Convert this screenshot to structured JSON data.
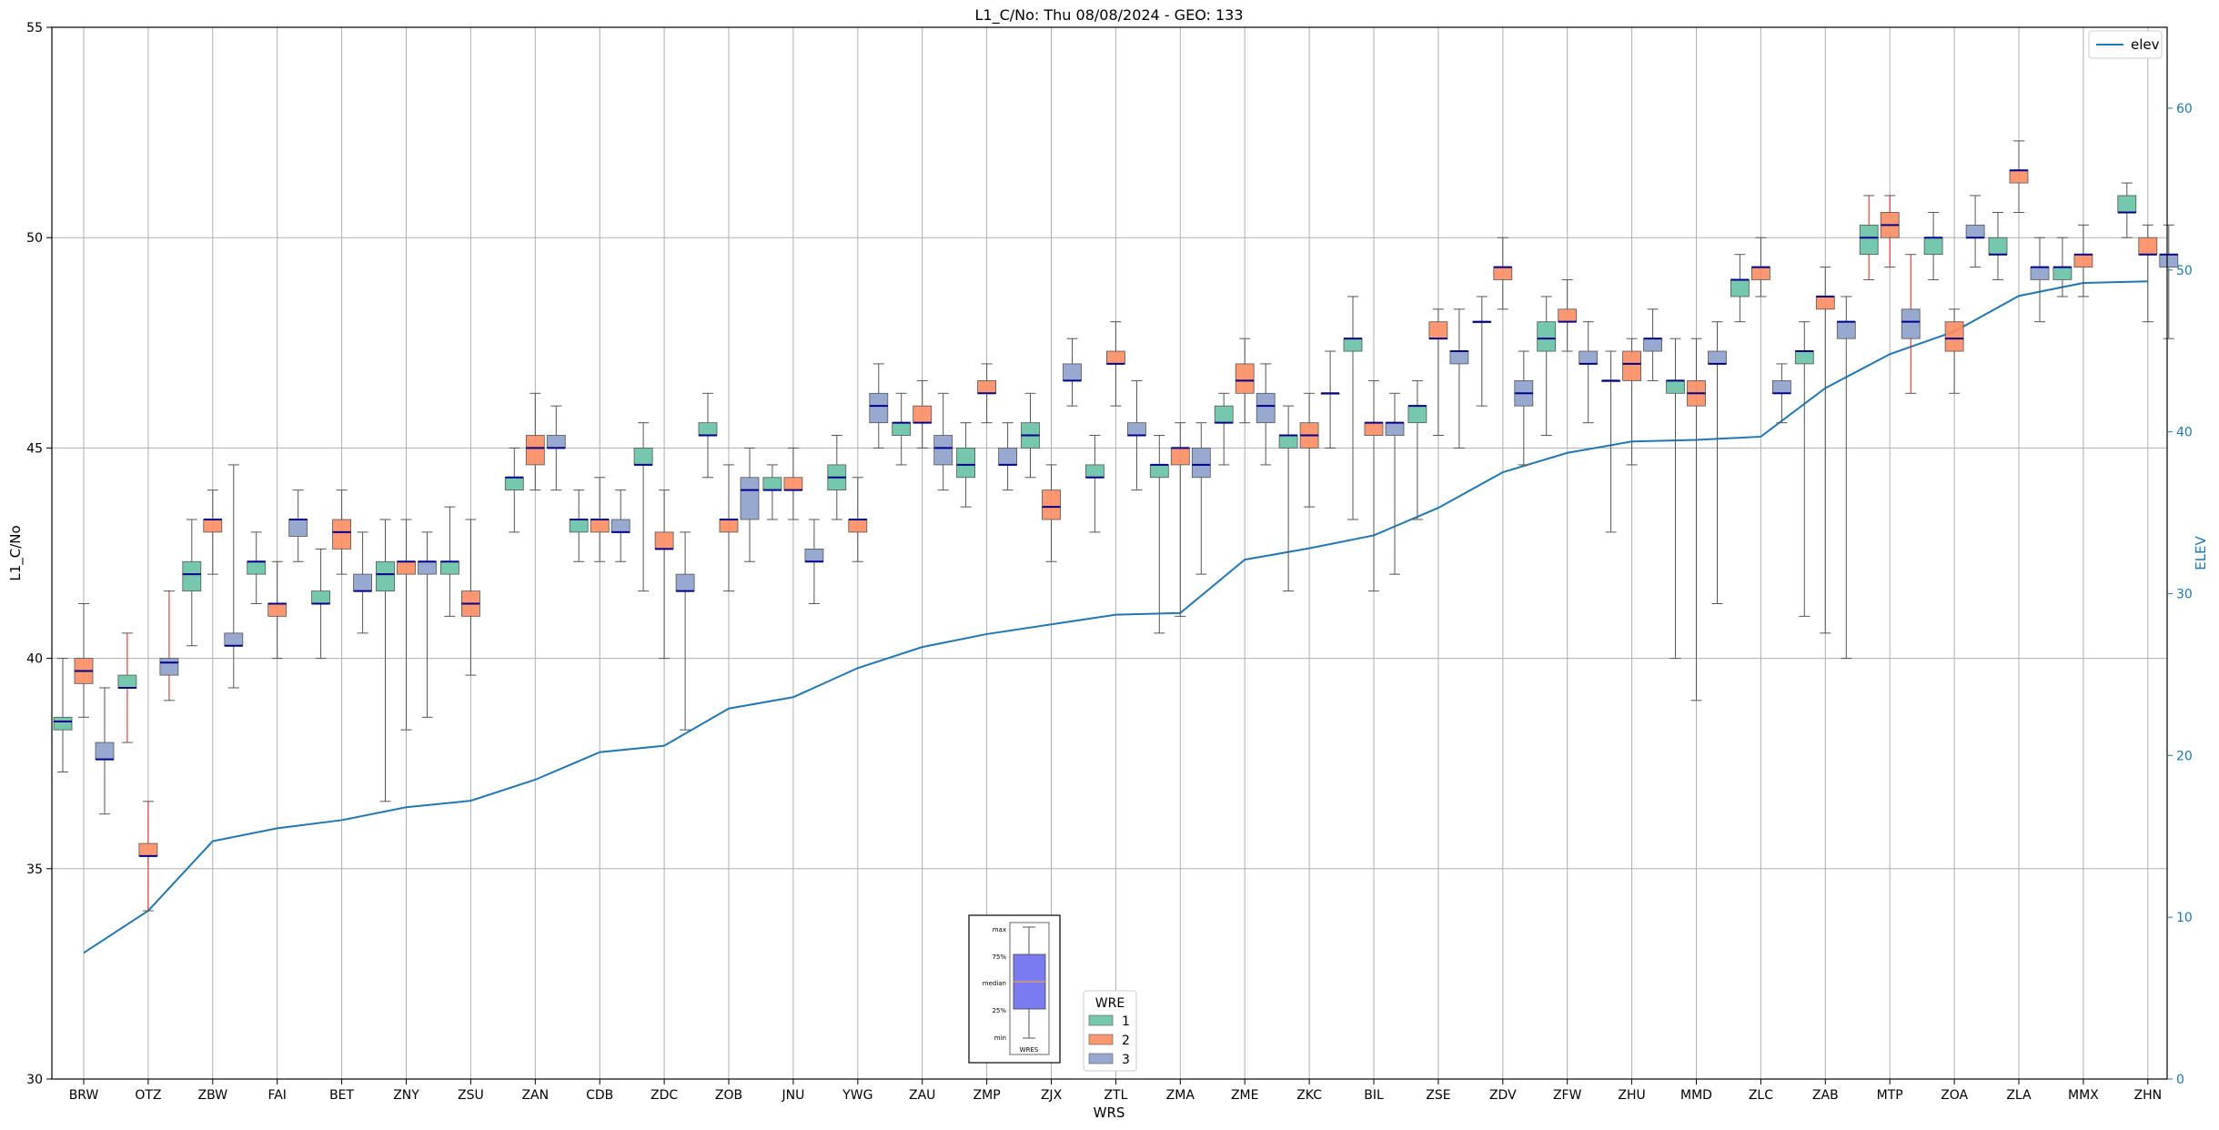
{
  "chart_data": {
    "type": "box",
    "title": "L1_C/No: Thu 08/08/2024 - GEO: 133",
    "xlabel": "WRS",
    "ylabel": "L1_C/No",
    "y2label": "ELEV",
    "ylim": [
      30,
      55
    ],
    "y2lim": [
      0,
      65
    ],
    "yticks": [
      30,
      35,
      40,
      45,
      50,
      55
    ],
    "y2ticks": [
      0,
      10,
      20,
      30,
      40,
      50,
      60
    ],
    "grid": true,
    "categories": [
      "BRW",
      "OTZ",
      "ZBW",
      "FAI",
      "BET",
      "ZNY",
      "ZSU",
      "ZAN",
      "CDB",
      "ZDC",
      "ZOB",
      "JNU",
      "YWG",
      "ZAU",
      "ZMP",
      "ZJX",
      "ZTL",
      "ZMA",
      "ZME",
      "ZKC",
      "BIL",
      "ZSE",
      "ZDV",
      "ZFW",
      "ZHU",
      "MMD",
      "ZLC",
      "ZAB",
      "MTP",
      "ZOA",
      "ZLA",
      "MMX",
      "ZHN"
    ],
    "colors": {
      "1": "#66c2a5",
      "2": "#fc8d62",
      "3": "#8da0cb",
      "elev": "#1f77b4",
      "median": "#00008b",
      "whisker": "#555555",
      "whisker_alt": "#e31a1c"
    },
    "boxes": [
      {
        "category": "BRW",
        "wre": "1",
        "min": 37.3,
        "q1": 38.3,
        "median": 38.5,
        "q3": 38.6,
        "max": 40.0
      },
      {
        "category": "BRW",
        "wre": "2",
        "min": 38.6,
        "q1": 39.4,
        "median": 39.7,
        "q3": 40.0,
        "max": 41.3
      },
      {
        "category": "BRW",
        "wre": "3",
        "min": 36.3,
        "q1": 37.6,
        "median": 37.6,
        "q3": 38.0,
        "max": 39.3
      },
      {
        "category": "OTZ",
        "wre": "1",
        "min": 38.0,
        "q1": 39.3,
        "median": 39.3,
        "q3": 39.6,
        "max": 40.6,
        "whisker_color": "red"
      },
      {
        "category": "OTZ",
        "wre": "2",
        "min": 34.0,
        "q1": 35.3,
        "median": 35.3,
        "q3": 35.6,
        "max": 36.6,
        "whisker_color": "red"
      },
      {
        "category": "OTZ",
        "wre": "3",
        "min": 39.0,
        "q1": 39.6,
        "median": 39.9,
        "q3": 40.0,
        "max": 41.6,
        "whisker_color": "red"
      },
      {
        "category": "ZBW",
        "wre": "1",
        "min": 40.3,
        "q1": 41.6,
        "median": 42.0,
        "q3": 42.3,
        "max": 43.3
      },
      {
        "category": "ZBW",
        "wre": "2",
        "min": 42.0,
        "q1": 43.0,
        "median": 43.3,
        "q3": 43.3,
        "max": 44.0
      },
      {
        "category": "ZBW",
        "wre": "3",
        "min": 39.3,
        "q1": 40.3,
        "median": 40.3,
        "q3": 40.6,
        "max": 44.6
      },
      {
        "category": "FAI",
        "wre": "1",
        "min": 41.3,
        "q1": 42.0,
        "median": 42.3,
        "q3": 42.3,
        "max": 43.0
      },
      {
        "category": "FAI",
        "wre": "2",
        "min": 40.0,
        "q1": 41.0,
        "median": 41.3,
        "q3": 41.3,
        "max": 42.3
      },
      {
        "category": "FAI",
        "wre": "3",
        "min": 42.3,
        "q1": 42.9,
        "median": 43.3,
        "q3": 43.3,
        "max": 44.0
      },
      {
        "category": "BET",
        "wre": "1",
        "min": 40.0,
        "q1": 41.3,
        "median": 41.3,
        "q3": 41.6,
        "max": 42.6
      },
      {
        "category": "BET",
        "wre": "2",
        "min": 42.0,
        "q1": 42.6,
        "median": 43.0,
        "q3": 43.3,
        "max": 44.0
      },
      {
        "category": "BET",
        "wre": "3",
        "min": 40.6,
        "q1": 41.6,
        "median": 41.6,
        "q3": 42.0,
        "max": 43.0
      },
      {
        "category": "ZNY",
        "wre": "1",
        "min": 36.6,
        "q1": 41.6,
        "median": 42.0,
        "q3": 42.3,
        "max": 43.3
      },
      {
        "category": "ZNY",
        "wre": "2",
        "min": 38.3,
        "q1": 42.0,
        "median": 42.3,
        "q3": 42.3,
        "max": 43.3
      },
      {
        "category": "ZNY",
        "wre": "3",
        "min": 38.6,
        "q1": 42.0,
        "median": 42.3,
        "q3": 42.3,
        "max": 43.0
      },
      {
        "category": "ZSU",
        "wre": "1",
        "min": 41.0,
        "q1": 42.0,
        "median": 42.3,
        "q3": 42.3,
        "max": 43.6
      },
      {
        "category": "ZSU",
        "wre": "2",
        "min": 39.6,
        "q1": 41.0,
        "median": 41.3,
        "q3": 41.6,
        "max": 43.3
      },
      {
        "category": "ZAN",
        "wre": "1",
        "min": 43.0,
        "q1": 44.0,
        "median": 44.3,
        "q3": 44.3,
        "max": 45.0
      },
      {
        "category": "ZAN",
        "wre": "2",
        "min": 44.0,
        "q1": 44.6,
        "median": 45.0,
        "q3": 45.3,
        "max": 46.3
      },
      {
        "category": "ZAN",
        "wre": "3",
        "min": 44.0,
        "q1": 45.0,
        "median": 45.0,
        "q3": 45.3,
        "max": 46.0
      },
      {
        "category": "CDB",
        "wre": "1",
        "min": 42.3,
        "q1": 43.0,
        "median": 43.3,
        "q3": 43.3,
        "max": 44.0
      },
      {
        "category": "CDB",
        "wre": "2",
        "min": 42.3,
        "q1": 43.0,
        "median": 43.3,
        "q3": 43.3,
        "max": 44.3
      },
      {
        "category": "CDB",
        "wre": "3",
        "min": 42.3,
        "q1": 43.0,
        "median": 43.0,
        "q3": 43.3,
        "max": 44.0
      },
      {
        "category": "ZDC",
        "wre": "1",
        "min": 41.6,
        "q1": 44.6,
        "median": 44.6,
        "q3": 45.0,
        "max": 45.6
      },
      {
        "category": "ZDC",
        "wre": "2",
        "min": 40.0,
        "q1": 42.6,
        "median": 42.6,
        "q3": 43.0,
        "max": 44.0
      },
      {
        "category": "ZDC",
        "wre": "3",
        "min": 38.3,
        "q1": 41.6,
        "median": 41.6,
        "q3": 42.0,
        "max": 43.0
      },
      {
        "category": "ZOB",
        "wre": "1",
        "min": 44.3,
        "q1": 45.3,
        "median": 45.3,
        "q3": 45.6,
        "max": 46.3
      },
      {
        "category": "ZOB",
        "wre": "2",
        "min": 41.6,
        "q1": 43.0,
        "median": 43.3,
        "q3": 43.3,
        "max": 44.6
      },
      {
        "category": "ZOB",
        "wre": "3",
        "min": 42.3,
        "q1": 43.3,
        "median": 44.0,
        "q3": 44.3,
        "max": 45.0
      },
      {
        "category": "JNU",
        "wre": "1",
        "min": 43.3,
        "q1": 44.0,
        "median": 44.0,
        "q3": 44.3,
        "max": 44.6
      },
      {
        "category": "JNU",
        "wre": "2",
        "min": 43.3,
        "q1": 44.0,
        "median": 44.0,
        "q3": 44.3,
        "max": 45.0
      },
      {
        "category": "JNU",
        "wre": "3",
        "min": 41.3,
        "q1": 42.3,
        "median": 42.3,
        "q3": 42.6,
        "max": 43.3
      },
      {
        "category": "YWG",
        "wre": "1",
        "min": 43.3,
        "q1": 44.0,
        "median": 44.3,
        "q3": 44.6,
        "max": 45.3
      },
      {
        "category": "YWG",
        "wre": "2",
        "min": 42.3,
        "q1": 43.0,
        "median": 43.3,
        "q3": 43.3,
        "max": 44.3
      },
      {
        "category": "YWG",
        "wre": "3",
        "min": 45.0,
        "q1": 45.6,
        "median": 46.0,
        "q3": 46.3,
        "max": 47.0
      },
      {
        "category": "ZAU",
        "wre": "1",
        "min": 44.6,
        "q1": 45.3,
        "median": 45.6,
        "q3": 45.6,
        "max": 46.3
      },
      {
        "category": "ZAU",
        "wre": "2",
        "min": 45.0,
        "q1": 45.6,
        "median": 45.6,
        "q3": 46.0,
        "max": 46.6
      },
      {
        "category": "ZAU",
        "wre": "3",
        "min": 44.0,
        "q1": 44.6,
        "median": 45.0,
        "q3": 45.3,
        "max": 46.3
      },
      {
        "category": "ZMP",
        "wre": "1",
        "min": 43.6,
        "q1": 44.3,
        "median": 44.6,
        "q3": 45.0,
        "max": 45.6
      },
      {
        "category": "ZMP",
        "wre": "2",
        "min": 45.6,
        "q1": 46.3,
        "median": 46.3,
        "q3": 46.6,
        "max": 47.0
      },
      {
        "category": "ZMP",
        "wre": "3",
        "min": 44.0,
        "q1": 44.6,
        "median": 44.6,
        "q3": 45.0,
        "max": 45.6
      },
      {
        "category": "ZJX",
        "wre": "1",
        "min": 44.3,
        "q1": 45.0,
        "median": 45.3,
        "q3": 45.6,
        "max": 46.3
      },
      {
        "category": "ZJX",
        "wre": "2",
        "min": 42.3,
        "q1": 43.3,
        "median": 43.6,
        "q3": 44.0,
        "max": 44.6
      },
      {
        "category": "ZJX",
        "wre": "3",
        "min": 46.0,
        "q1": 46.6,
        "median": 46.6,
        "q3": 47.0,
        "max": 47.6
      },
      {
        "category": "ZTL",
        "wre": "1",
        "min": 43.0,
        "q1": 44.3,
        "median": 44.3,
        "q3": 44.6,
        "max": 45.3
      },
      {
        "category": "ZTL",
        "wre": "2",
        "min": 46.0,
        "q1": 47.0,
        "median": 47.0,
        "q3": 47.3,
        "max": 48.0
      },
      {
        "category": "ZTL",
        "wre": "3",
        "min": 44.0,
        "q1": 45.3,
        "median": 45.3,
        "q3": 45.6,
        "max": 46.6
      },
      {
        "category": "ZMA",
        "wre": "1",
        "min": 40.6,
        "q1": 44.3,
        "median": 44.6,
        "q3": 44.6,
        "max": 45.3
      },
      {
        "category": "ZMA",
        "wre": "2",
        "min": 41.0,
        "q1": 44.6,
        "median": 45.0,
        "q3": 45.0,
        "max": 45.6
      },
      {
        "category": "ZMA",
        "wre": "3",
        "min": 42.0,
        "q1": 44.3,
        "median": 44.6,
        "q3": 45.0,
        "max": 45.6
      },
      {
        "category": "ZME",
        "wre": "1",
        "min": 44.6,
        "q1": 45.6,
        "median": 45.6,
        "q3": 46.0,
        "max": 46.3
      },
      {
        "category": "ZME",
        "wre": "2",
        "min": 45.6,
        "q1": 46.3,
        "median": 46.6,
        "q3": 47.0,
        "max": 47.6
      },
      {
        "category": "ZME",
        "wre": "3",
        "min": 44.6,
        "q1": 45.6,
        "median": 46.0,
        "q3": 46.3,
        "max": 47.0
      },
      {
        "category": "ZKC",
        "wre": "1",
        "min": 41.6,
        "q1": 45.0,
        "median": 45.3,
        "q3": 45.3,
        "max": 46.0
      },
      {
        "category": "ZKC",
        "wre": "2",
        "min": 43.6,
        "q1": 45.0,
        "median": 45.3,
        "q3": 45.6,
        "max": 46.3
      },
      {
        "category": "ZKC",
        "wre": "3",
        "min": 45.0,
        "q1": 46.3,
        "median": 46.3,
        "q3": 46.3,
        "max": 47.3
      },
      {
        "category": "BIL",
        "wre": "1",
        "min": 43.3,
        "q1": 47.3,
        "median": 47.6,
        "q3": 47.6,
        "max": 48.6
      },
      {
        "category": "BIL",
        "wre": "2",
        "min": 41.6,
        "q1": 45.3,
        "median": 45.6,
        "q3": 45.6,
        "max": 46.6
      },
      {
        "category": "BIL",
        "wre": "3",
        "min": 42.0,
        "q1": 45.3,
        "median": 45.6,
        "q3": 45.6,
        "max": 46.3
      },
      {
        "category": "ZSE",
        "wre": "1",
        "min": 43.3,
        "q1": 45.6,
        "median": 46.0,
        "q3": 46.0,
        "max": 46.6
      },
      {
        "category": "ZSE",
        "wre": "2",
        "min": 45.3,
        "q1": 47.6,
        "median": 47.6,
        "q3": 48.0,
        "max": 48.3
      },
      {
        "category": "ZSE",
        "wre": "3",
        "min": 45.0,
        "q1": 47.0,
        "median": 47.3,
        "q3": 47.3,
        "max": 48.3
      },
      {
        "category": "ZDV",
        "wre": "1",
        "min": 46.0,
        "q1": 48.0,
        "median": 48.0,
        "q3": 48.0,
        "max": 48.6
      },
      {
        "category": "ZDV",
        "wre": "2",
        "min": 48.3,
        "q1": 49.0,
        "median": 49.3,
        "q3": 49.3,
        "max": 50.0
      },
      {
        "category": "ZDV",
        "wre": "3",
        "min": 44.6,
        "q1": 46.0,
        "median": 46.3,
        "q3": 46.6,
        "max": 47.3
      },
      {
        "category": "ZFW",
        "wre": "1",
        "min": 45.3,
        "q1": 47.3,
        "median": 47.6,
        "q3": 48.0,
        "max": 48.6
      },
      {
        "category": "ZFW",
        "wre": "2",
        "min": 47.3,
        "q1": 48.0,
        "median": 48.0,
        "q3": 48.3,
        "max": 49.0
      },
      {
        "category": "ZFW",
        "wre": "3",
        "min": 45.6,
        "q1": 47.0,
        "median": 47.0,
        "q3": 47.3,
        "max": 48.0
      },
      {
        "category": "ZHU",
        "wre": "1",
        "min": 43.0,
        "q1": 46.6,
        "median": 46.6,
        "q3": 46.6,
        "max": 47.3
      },
      {
        "category": "ZHU",
        "wre": "2",
        "min": 44.6,
        "q1": 46.6,
        "median": 47.0,
        "q3": 47.3,
        "max": 47.6
      },
      {
        "category": "ZHU",
        "wre": "3",
        "min": 46.6,
        "q1": 47.3,
        "median": 47.6,
        "q3": 47.6,
        "max": 48.3
      },
      {
        "category": "MMD",
        "wre": "1",
        "min": 40.0,
        "q1": 46.3,
        "median": 46.6,
        "q3": 46.6,
        "max": 47.6
      },
      {
        "category": "MMD",
        "wre": "2",
        "min": 39.0,
        "q1": 46.0,
        "median": 46.3,
        "q3": 46.6,
        "max": 47.6
      },
      {
        "category": "MMD",
        "wre": "3",
        "min": 41.3,
        "q1": 47.0,
        "median": 47.0,
        "q3": 47.3,
        "max": 48.0
      },
      {
        "category": "ZLC",
        "wre": "1",
        "min": 48.0,
        "q1": 48.6,
        "median": 49.0,
        "q3": 49.0,
        "max": 49.6
      },
      {
        "category": "ZLC",
        "wre": "2",
        "min": 48.6,
        "q1": 49.0,
        "median": 49.3,
        "q3": 49.3,
        "max": 50.0
      },
      {
        "category": "ZLC",
        "wre": "3",
        "min": 45.6,
        "q1": 46.3,
        "median": 46.3,
        "q3": 46.6,
        "max": 47.0
      },
      {
        "category": "ZAB",
        "wre": "1",
        "min": 41.0,
        "q1": 47.0,
        "median": 47.3,
        "q3": 47.3,
        "max": 48.0
      },
      {
        "category": "ZAB",
        "wre": "2",
        "min": 40.6,
        "q1": 48.3,
        "median": 48.6,
        "q3": 48.6,
        "max": 49.3
      },
      {
        "category": "ZAB",
        "wre": "3",
        "min": 40.0,
        "q1": 47.6,
        "median": 48.0,
        "q3": 48.0,
        "max": 48.6
      },
      {
        "category": "MTP",
        "wre": "1",
        "min": 49.0,
        "q1": 49.6,
        "median": 50.0,
        "q3": 50.3,
        "max": 51.0,
        "whisker_color": "red"
      },
      {
        "category": "MTP",
        "wre": "2",
        "min": 49.3,
        "q1": 50.0,
        "median": 50.3,
        "q3": 50.6,
        "max": 51.0,
        "whisker_color": "red"
      },
      {
        "category": "MTP",
        "wre": "3",
        "min": 46.3,
        "q1": 47.6,
        "median": 48.0,
        "q3": 48.3,
        "max": 49.6,
        "whisker_color": "red"
      },
      {
        "category": "ZOA",
        "wre": "1",
        "min": 49.0,
        "q1": 49.6,
        "median": 50.0,
        "q3": 50.0,
        "max": 50.6
      },
      {
        "category": "ZOA",
        "wre": "2",
        "min": 46.3,
        "q1": 47.3,
        "median": 47.6,
        "q3": 48.0,
        "max": 48.3
      },
      {
        "category": "ZOA",
        "wre": "3",
        "min": 49.3,
        "q1": 50.0,
        "median": 50.0,
        "q3": 50.3,
        "max": 51.0
      },
      {
        "category": "ZLA",
        "wre": "1",
        "min": 49.0,
        "q1": 49.6,
        "median": 49.6,
        "q3": 50.0,
        "max": 50.6
      },
      {
        "category": "ZLA",
        "wre": "2",
        "min": 50.6,
        "q1": 51.3,
        "median": 51.6,
        "q3": 51.6,
        "max": 52.3
      },
      {
        "category": "ZLA",
        "wre": "3",
        "min": 48.0,
        "q1": 49.0,
        "median": 49.3,
        "q3": 49.3,
        "max": 50.0
      },
      {
        "category": "MMX",
        "wre": "1",
        "min": 48.6,
        "q1": 49.0,
        "median": 49.3,
        "q3": 49.3,
        "max": 50.0
      },
      {
        "category": "MMX",
        "wre": "2",
        "min": 48.6,
        "q1": 49.3,
        "median": 49.6,
        "q3": 49.6,
        "max": 50.3
      },
      {
        "category": "ZHN",
        "wre": "1",
        "min": 50.0,
        "q1": 50.6,
        "median": 50.6,
        "q3": 51.0,
        "max": 51.3
      },
      {
        "category": "ZHN",
        "wre": "2",
        "min": 48.0,
        "q1": 49.6,
        "median": 49.6,
        "q3": 50.0,
        "max": 50.3
      },
      {
        "category": "ZHN",
        "wre": "3",
        "min": 47.6,
        "q1": 49.3,
        "median": 49.6,
        "q3": 49.6,
        "max": 50.3
      }
    ],
    "elev_series": {
      "name": "elev",
      "values": [
        7.8,
        10.4,
        14.7,
        15.5,
        16.0,
        16.8,
        17.2,
        18.5,
        20.2,
        20.6,
        22.9,
        23.6,
        25.4,
        26.7,
        27.5,
        28.1,
        28.7,
        28.8,
        32.1,
        32.8,
        33.6,
        35.3,
        37.5,
        38.7,
        39.4,
        39.5,
        39.7,
        42.7,
        44.8,
        46.2,
        48.4,
        49.2,
        49.3
      ]
    },
    "legend_elev": {
      "label": "elev",
      "position": "top-right"
    },
    "legend_wre": {
      "title": "WRE",
      "entries": [
        "1",
        "2",
        "3"
      ],
      "position": "bottom-center"
    },
    "key_box": {
      "labels": [
        "max",
        "75%",
        "median",
        "25%",
        "min"
      ],
      "xlabel": "WRES"
    }
  }
}
